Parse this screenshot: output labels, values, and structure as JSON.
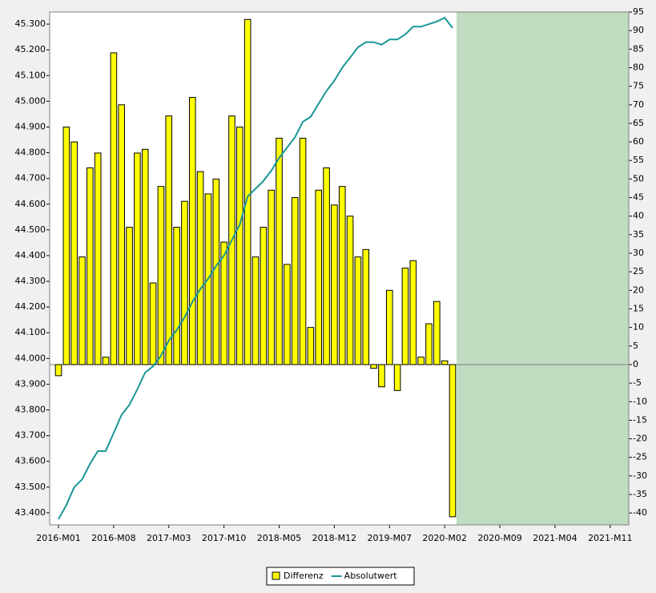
{
  "chart_data": {
    "type": "bar-line",
    "categories": [
      "2016-M01",
      null,
      null,
      null,
      null,
      null,
      null,
      "2016-M08",
      null,
      null,
      null,
      null,
      null,
      null,
      "2017-M03",
      null,
      null,
      null,
      null,
      null,
      null,
      "2017-M10",
      null,
      null,
      null,
      null,
      null,
      null,
      "2018-M05",
      null,
      null,
      null,
      null,
      null,
      null,
      "2018-M12",
      null,
      null,
      null,
      null,
      null,
      null,
      "2019-M07",
      null,
      null,
      null,
      null,
      null,
      null,
      "2020-M02",
      null,
      null,
      null,
      null,
      null,
      null,
      "2020-M09",
      null,
      null,
      null,
      null,
      null,
      null,
      "2021-M04",
      null,
      null,
      null,
      null,
      null,
      null,
      "2021-M11",
      null
    ],
    "series": [
      {
        "name": "Differenz",
        "type": "bar",
        "axis": "y2",
        "color": "#ffff00",
        "values": [
          -3,
          64,
          60,
          29,
          53,
          57,
          2,
          84,
          70,
          37,
          57,
          58,
          22,
          48,
          67,
          37,
          44,
          72,
          52,
          46,
          50,
          33,
          67,
          64,
          93,
          29,
          37,
          47,
          61,
          27,
          45,
          61,
          10,
          47,
          53,
          43,
          48,
          40,
          29,
          31,
          -1,
          -6,
          20,
          -7,
          26,
          28,
          2,
          11,
          17,
          1,
          -41,
          null,
          null,
          null,
          null,
          null,
          null,
          null,
          null,
          null,
          null,
          null,
          null,
          null,
          null,
          null,
          null,
          null,
          null,
          null,
          null,
          null
        ]
      },
      {
        "name": "Absolutwert",
        "type": "line",
        "axis": "y",
        "color": "#1a9696",
        "values": [
          43.375,
          43.43,
          43.5,
          43.53,
          43.59,
          43.64,
          43.64,
          43.71,
          43.78,
          43.82,
          43.88,
          43.945,
          43.97,
          44.01,
          44.07,
          44.11,
          44.16,
          44.22,
          44.27,
          44.31,
          44.36,
          44.4,
          44.46,
          44.52,
          44.63,
          44.66,
          44.69,
          44.73,
          44.78,
          44.82,
          44.86,
          44.92,
          44.94,
          44.99,
          45.04,
          45.08,
          45.13,
          45.17,
          45.21,
          45.23,
          45.23,
          45.22,
          45.24,
          45.24,
          45.26,
          45.29,
          45.29,
          45.3,
          45.31,
          45.325,
          45.285,
          null,
          null,
          null,
          null,
          null,
          null,
          null,
          null,
          null,
          null,
          null,
          null,
          null,
          null,
          null,
          null,
          null,
          null,
          null,
          null,
          null
        ]
      }
    ],
    "ylim": [
      43.353,
      45.347
    ],
    "yticks": [
      {
        "value": 43.4,
        "label": "43.400"
      },
      {
        "value": 43.5,
        "label": "43.500"
      },
      {
        "value": 43.6,
        "label": "43.600"
      },
      {
        "value": 43.7,
        "label": "43.700"
      },
      {
        "value": 43.8,
        "label": "43.800"
      },
      {
        "value": 43.9,
        "label": "43.900"
      },
      {
        "value": 44.0,
        "label": "44.000"
      },
      {
        "value": 44.1,
        "label": "44.100"
      },
      {
        "value": 44.2,
        "label": "44.200"
      },
      {
        "value": 44.3,
        "label": "44.300"
      },
      {
        "value": 44.4,
        "label": "44.400"
      },
      {
        "value": 44.5,
        "label": "44.500"
      },
      {
        "value": 44.6,
        "label": "44.600"
      },
      {
        "value": 44.7,
        "label": "44.700"
      },
      {
        "value": 44.8,
        "label": "44.800"
      },
      {
        "value": 44.9,
        "label": "44.900"
      },
      {
        "value": 45.0,
        "label": "45.000"
      },
      {
        "value": 45.1,
        "label": "45.100"
      },
      {
        "value": 45.2,
        "label": "45.200"
      },
      {
        "value": 45.3,
        "label": "45.300"
      }
    ],
    "y2lim": [
      -43.2,
      95
    ],
    "y2ticks": [
      -40,
      -35,
      -30,
      -25,
      -20,
      -15,
      -10,
      -5,
      0,
      5,
      10,
      15,
      20,
      25,
      30,
      35,
      40,
      45,
      50,
      55,
      60,
      65,
      70,
      75,
      80,
      85,
      90,
      95
    ],
    "forecast_color": "#c0dcc0",
    "legend": "bottom"
  }
}
